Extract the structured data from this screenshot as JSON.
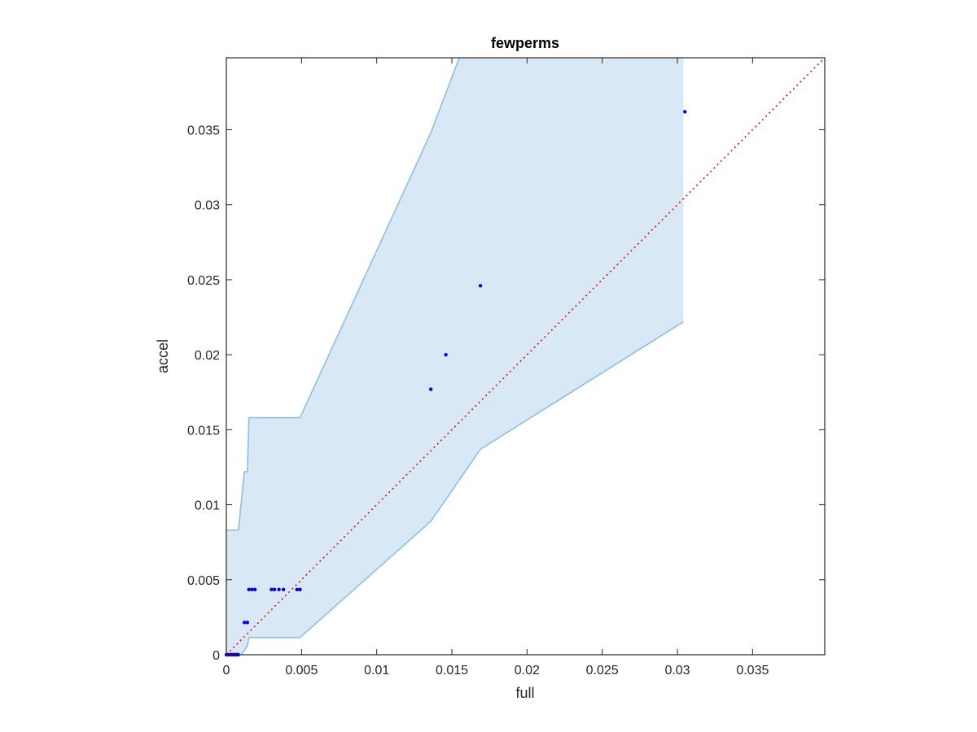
{
  "chart_data": {
    "type": "scatter",
    "title": "fewperms",
    "xlabel": "full",
    "ylabel": "accel",
    "xlim": [
      0,
      0.0398
    ],
    "ylim": [
      0,
      0.0398
    ],
    "xticks": [
      {
        "value": 0,
        "label": "0"
      },
      {
        "value": 0.005,
        "label": "0.005"
      },
      {
        "value": 0.01,
        "label": "0.01"
      },
      {
        "value": 0.015,
        "label": "0.015"
      },
      {
        "value": 0.02,
        "label": "0.02"
      },
      {
        "value": 0.025,
        "label": "0.025"
      },
      {
        "value": 0.03,
        "label": "0.03"
      },
      {
        "value": 0.035,
        "label": "0.035"
      }
    ],
    "yticks": [
      {
        "value": 0,
        "label": "0"
      },
      {
        "value": 0.005,
        "label": "0.005"
      },
      {
        "value": 0.01,
        "label": "0.01"
      },
      {
        "value": 0.015,
        "label": "0.015"
      },
      {
        "value": 0.02,
        "label": "0.02"
      },
      {
        "value": 0.025,
        "label": "0.025"
      },
      {
        "value": 0.03,
        "label": "0.03"
      },
      {
        "value": 0.035,
        "label": "0.035"
      }
    ],
    "grid": false,
    "points": [
      {
        "x": 0.0,
        "y": 0.0
      },
      {
        "x": 0.0001,
        "y": 0.0
      },
      {
        "x": 0.0002,
        "y": 0.0
      },
      {
        "x": 0.0003,
        "y": 0.0
      },
      {
        "x": 0.0004,
        "y": 0.0
      },
      {
        "x": 0.0005,
        "y": 0.0
      },
      {
        "x": 0.0006,
        "y": 0.0
      },
      {
        "x": 0.0007,
        "y": 0.0
      },
      {
        "x": 0.0008,
        "y": 0.0
      },
      {
        "x": 0.0012,
        "y": 0.00215
      },
      {
        "x": 0.0014,
        "y": 0.00215
      },
      {
        "x": 0.0015,
        "y": 0.00435
      },
      {
        "x": 0.0017,
        "y": 0.00435
      },
      {
        "x": 0.0019,
        "y": 0.00435
      },
      {
        "x": 0.003,
        "y": 0.00435
      },
      {
        "x": 0.0032,
        "y": 0.00435
      },
      {
        "x": 0.0035,
        "y": 0.00435
      },
      {
        "x": 0.0038,
        "y": 0.00435
      },
      {
        "x": 0.0047,
        "y": 0.00435
      },
      {
        "x": 0.0049,
        "y": 0.00435
      },
      {
        "x": 0.0136,
        "y": 0.0177
      },
      {
        "x": 0.0146,
        "y": 0.02
      },
      {
        "x": 0.0169,
        "y": 0.0246
      },
      {
        "x": 0.0305,
        "y": 0.0362
      }
    ],
    "band_upper": [
      [
        0,
        0.0083
      ],
      [
        0.0008,
        0.0083
      ],
      [
        0.0012,
        0.0122
      ],
      [
        0.0014,
        0.0122
      ],
      [
        0.0015,
        0.0158
      ],
      [
        0.0016,
        0.0158
      ],
      [
        0.0049,
        0.0158
      ],
      [
        0.0136,
        0.0348
      ],
      [
        0.0155,
        0.0398
      ]
    ],
    "band_upper_clip": [
      [
        0.0155,
        0.0398
      ],
      [
        0.0304,
        0.0398
      ]
    ],
    "band_lower": [
      [
        0.0304,
        0.0222
      ],
      [
        0.0169,
        0.0137
      ],
      [
        0.0136,
        0.0089
      ],
      [
        0.0049,
        0.00115
      ],
      [
        0.0015,
        0.00115
      ],
      [
        0.0014,
        0.0006
      ],
      [
        0.0012,
        0.0003
      ],
      [
        0.001,
        0.0
      ],
      [
        0,
        0.0
      ]
    ],
    "reference_line": {
      "style": "dotted",
      "color": "#ff0000",
      "from": [
        0,
        0
      ],
      "to": [
        0.0398,
        0.0398
      ]
    },
    "colors": {
      "points": "#0000ee",
      "band_fill": "#d8e8f4",
      "band_edge": "#8bc0e2",
      "reference": "#ff0000",
      "axes": "#262626"
    }
  }
}
